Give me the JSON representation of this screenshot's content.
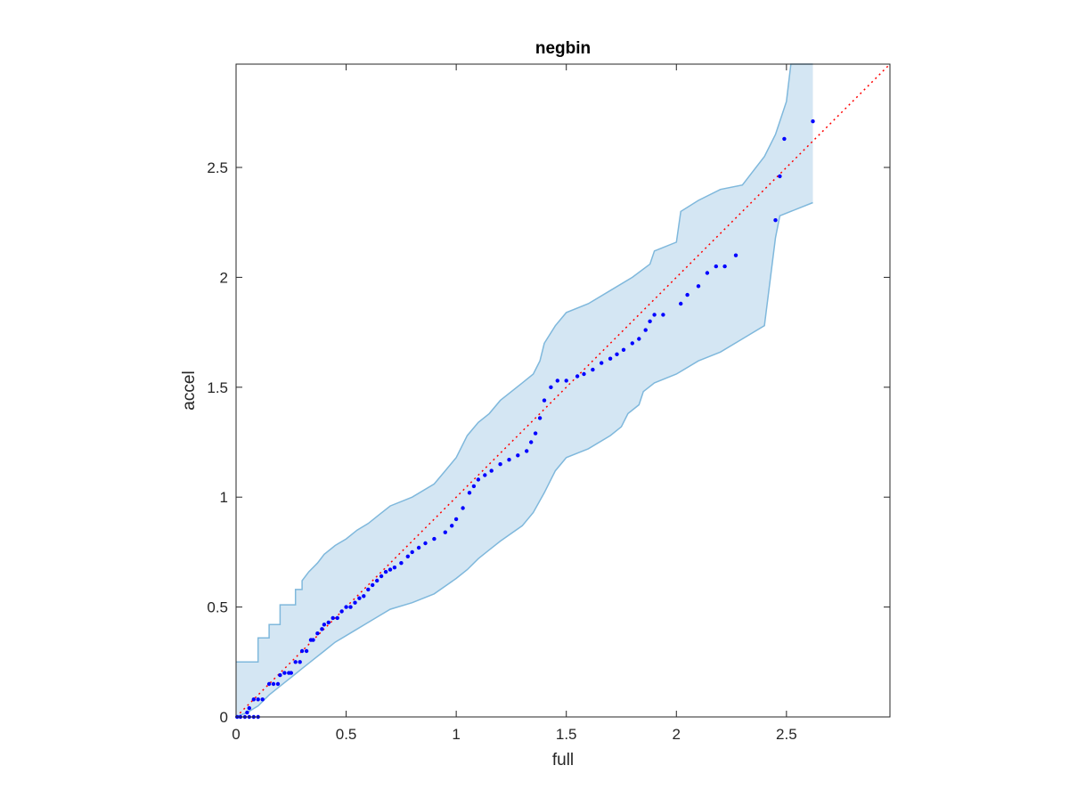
{
  "chart_data": {
    "type": "scatter",
    "title": "negbin",
    "xlabel": "full",
    "ylabel": "accel",
    "xlim": [
      0,
      2.97
    ],
    "ylim": [
      0,
      2.97
    ],
    "xticks": [
      "0",
      "0.5",
      "1",
      "1.5",
      "2",
      "2.5"
    ],
    "yticks": [
      "0",
      "0.5",
      "1",
      "1.5",
      "2",
      "2.5"
    ],
    "grid": false,
    "box": true,
    "colors": {
      "points": "#0000ff",
      "reference": "#ff0000",
      "band_fill": "#d4e6f3",
      "band_edge": "#7fb8dc"
    },
    "reference_line": {
      "style": "dotted",
      "x": [
        0,
        2.97
      ],
      "y": [
        0,
        2.97
      ]
    },
    "band": {
      "upper": [
        [
          0,
          0.25
        ],
        [
          0.1,
          0.25
        ],
        [
          0.1,
          0.36
        ],
        [
          0.15,
          0.36
        ],
        [
          0.15,
          0.42
        ],
        [
          0.2,
          0.42
        ],
        [
          0.2,
          0.51
        ],
        [
          0.27,
          0.51
        ],
        [
          0.27,
          0.58
        ],
        [
          0.3,
          0.58
        ],
        [
          0.3,
          0.62
        ],
        [
          0.33,
          0.66
        ],
        [
          0.37,
          0.7
        ],
        [
          0.4,
          0.74
        ],
        [
          0.45,
          0.78
        ],
        [
          0.5,
          0.81
        ],
        [
          0.55,
          0.85
        ],
        [
          0.6,
          0.88
        ],
        [
          0.65,
          0.92
        ],
        [
          0.7,
          0.96
        ],
        [
          0.8,
          1.0
        ],
        [
          0.9,
          1.06
        ],
        [
          0.95,
          1.12
        ],
        [
          1.0,
          1.18
        ],
        [
          1.05,
          1.28
        ],
        [
          1.1,
          1.34
        ],
        [
          1.15,
          1.38
        ],
        [
          1.2,
          1.44
        ],
        [
          1.3,
          1.52
        ],
        [
          1.35,
          1.56
        ],
        [
          1.38,
          1.62
        ],
        [
          1.4,
          1.7
        ],
        [
          1.45,
          1.78
        ],
        [
          1.5,
          1.84
        ],
        [
          1.6,
          1.88
        ],
        [
          1.7,
          1.94
        ],
        [
          1.8,
          2.0
        ],
        [
          1.88,
          2.06
        ],
        [
          1.9,
          2.12
        ],
        [
          2.0,
          2.16
        ],
        [
          2.02,
          2.3
        ],
        [
          2.1,
          2.35
        ],
        [
          2.2,
          2.4
        ],
        [
          2.3,
          2.42
        ],
        [
          2.4,
          2.55
        ],
        [
          2.45,
          2.65
        ],
        [
          2.5,
          2.8
        ],
        [
          2.52,
          2.97
        ],
        [
          2.62,
          2.97
        ]
      ],
      "lower": [
        [
          0,
          0
        ],
        [
          0.05,
          0.02
        ],
        [
          0.1,
          0.05
        ],
        [
          0.15,
          0.1
        ],
        [
          0.2,
          0.14
        ],
        [
          0.25,
          0.18
        ],
        [
          0.3,
          0.22
        ],
        [
          0.35,
          0.26
        ],
        [
          0.4,
          0.3
        ],
        [
          0.45,
          0.34
        ],
        [
          0.5,
          0.37
        ],
        [
          0.55,
          0.4
        ],
        [
          0.6,
          0.43
        ],
        [
          0.65,
          0.46
        ],
        [
          0.7,
          0.49
        ],
        [
          0.8,
          0.52
        ],
        [
          0.9,
          0.56
        ],
        [
          1.0,
          0.63
        ],
        [
          1.05,
          0.67
        ],
        [
          1.1,
          0.72
        ],
        [
          1.15,
          0.76
        ],
        [
          1.2,
          0.8
        ],
        [
          1.3,
          0.87
        ],
        [
          1.35,
          0.93
        ],
        [
          1.4,
          1.02
        ],
        [
          1.45,
          1.12
        ],
        [
          1.5,
          1.18
        ],
        [
          1.6,
          1.22
        ],
        [
          1.7,
          1.28
        ],
        [
          1.75,
          1.32
        ],
        [
          1.78,
          1.38
        ],
        [
          1.83,
          1.42
        ],
        [
          1.85,
          1.48
        ],
        [
          1.9,
          1.52
        ],
        [
          2.0,
          1.56
        ],
        [
          2.1,
          1.62
        ],
        [
          2.2,
          1.66
        ],
        [
          2.3,
          1.72
        ],
        [
          2.4,
          1.78
        ],
        [
          2.45,
          2.18
        ],
        [
          2.47,
          2.28
        ],
        [
          2.62,
          2.34
        ]
      ]
    },
    "points": [
      [
        0.005,
        0.0
      ],
      [
        0.02,
        0.0
      ],
      [
        0.04,
        0.0
      ],
      [
        0.06,
        0.0
      ],
      [
        0.08,
        0.0
      ],
      [
        0.1,
        0.0
      ],
      [
        0.05,
        0.02
      ],
      [
        0.06,
        0.04
      ],
      [
        0.08,
        0.08
      ],
      [
        0.1,
        0.08
      ],
      [
        0.12,
        0.08
      ],
      [
        0.15,
        0.15
      ],
      [
        0.17,
        0.15
      ],
      [
        0.19,
        0.15
      ],
      [
        0.2,
        0.19
      ],
      [
        0.22,
        0.2
      ],
      [
        0.24,
        0.2
      ],
      [
        0.25,
        0.2
      ],
      [
        0.27,
        0.25
      ],
      [
        0.29,
        0.25
      ],
      [
        0.3,
        0.3
      ],
      [
        0.32,
        0.3
      ],
      [
        0.34,
        0.35
      ],
      [
        0.35,
        0.35
      ],
      [
        0.37,
        0.38
      ],
      [
        0.39,
        0.4
      ],
      [
        0.4,
        0.42
      ],
      [
        0.42,
        0.43
      ],
      [
        0.44,
        0.45
      ],
      [
        0.46,
        0.45
      ],
      [
        0.48,
        0.48
      ],
      [
        0.5,
        0.5
      ],
      [
        0.52,
        0.5
      ],
      [
        0.54,
        0.52
      ],
      [
        0.56,
        0.54
      ],
      [
        0.58,
        0.55
      ],
      [
        0.6,
        0.58
      ],
      [
        0.62,
        0.6
      ],
      [
        0.64,
        0.62
      ],
      [
        0.66,
        0.64
      ],
      [
        0.68,
        0.66
      ],
      [
        0.7,
        0.67
      ],
      [
        0.72,
        0.68
      ],
      [
        0.75,
        0.7
      ],
      [
        0.78,
        0.73
      ],
      [
        0.8,
        0.75
      ],
      [
        0.83,
        0.77
      ],
      [
        0.86,
        0.79
      ],
      [
        0.9,
        0.81
      ],
      [
        0.95,
        0.84
      ],
      [
        0.98,
        0.87
      ],
      [
        1.0,
        0.9
      ],
      [
        1.03,
        0.95
      ],
      [
        1.06,
        1.02
      ],
      [
        1.08,
        1.05
      ],
      [
        1.1,
        1.08
      ],
      [
        1.13,
        1.1
      ],
      [
        1.16,
        1.12
      ],
      [
        1.2,
        1.15
      ],
      [
        1.24,
        1.17
      ],
      [
        1.28,
        1.19
      ],
      [
        1.32,
        1.21
      ],
      [
        1.34,
        1.25
      ],
      [
        1.36,
        1.29
      ],
      [
        1.38,
        1.36
      ],
      [
        1.4,
        1.44
      ],
      [
        1.43,
        1.5
      ],
      [
        1.46,
        1.53
      ],
      [
        1.5,
        1.53
      ],
      [
        1.55,
        1.55
      ],
      [
        1.58,
        1.56
      ],
      [
        1.62,
        1.58
      ],
      [
        1.66,
        1.61
      ],
      [
        1.7,
        1.63
      ],
      [
        1.73,
        1.65
      ],
      [
        1.76,
        1.67
      ],
      [
        1.8,
        1.7
      ],
      [
        1.83,
        1.72
      ],
      [
        1.86,
        1.76
      ],
      [
        1.88,
        1.8
      ],
      [
        1.9,
        1.83
      ],
      [
        1.94,
        1.83
      ],
      [
        2.02,
        1.88
      ],
      [
        2.05,
        1.92
      ],
      [
        2.1,
        1.96
      ],
      [
        2.14,
        2.02
      ],
      [
        2.18,
        2.05
      ],
      [
        2.22,
        2.05
      ],
      [
        2.27,
        2.1
      ],
      [
        2.45,
        2.26
      ],
      [
        2.47,
        2.46
      ],
      [
        2.49,
        2.63
      ],
      [
        2.62,
        2.71
      ]
    ]
  }
}
